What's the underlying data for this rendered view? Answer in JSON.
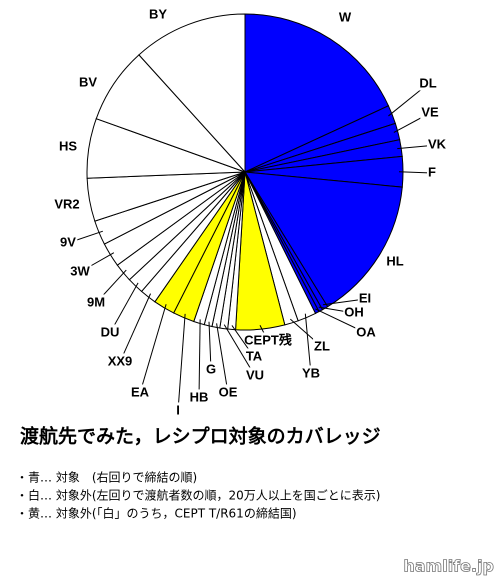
{
  "chart_data": {
    "type": "pie",
    "title": "渡航先でみた，レシプロ対象のカバレッジ",
    "notes": [
      "・青… 対象　(右回りで締結の順)",
      "・白… 対象外(左回りで渡航者数の順，20万人以上を国ごとに表示)",
      "・黄… 対象外(「白」のうち，CEPT T/R61の締結国)"
    ],
    "watermark": "hamlife.jp",
    "categories": [
      "W",
      "DL",
      "VE",
      "VK",
      "F",
      "HL",
      "EI",
      "OH",
      "OA",
      "YB",
      "ZL",
      "CEPT残",
      "TA",
      "VU",
      "OE",
      "G",
      "HB",
      "I",
      "EA",
      "XX9",
      "DU",
      "9M",
      "3W",
      "9V",
      "VR2",
      "HS",
      "BV",
      "BY"
    ],
    "values": [
      18.1,
      1.9,
      1.7,
      1.7,
      3.1,
      14.7,
      0.6,
      0.4,
      0.4,
      1.9,
      1.4,
      5.0,
      0.8,
      0.8,
      0.8,
      0.8,
      1.1,
      2.2,
      2.2,
      1.7,
      1.7,
      1.9,
      2.5,
      2.5,
      4.4,
      6.1,
      7.8,
      11.7
    ],
    "colors": [
      "#0000ff",
      "#0000ff",
      "#0000ff",
      "#0000ff",
      "#0000ff",
      "#0000ff",
      "#0000ff",
      "#0000ff",
      "#0000ff",
      "#ffffff",
      "#ffffff",
      "#ffff00",
      "#ffffff",
      "#ffffff",
      "#ffffff",
      "#ffffff",
      "#ffffff",
      "#ffff00",
      "#ffff00",
      "#ffffff",
      "#ffffff",
      "#ffffff",
      "#ffffff",
      "#ffffff",
      "#ffffff",
      "#ffffff",
      "#ffffff",
      "#ffffff"
    ]
  }
}
